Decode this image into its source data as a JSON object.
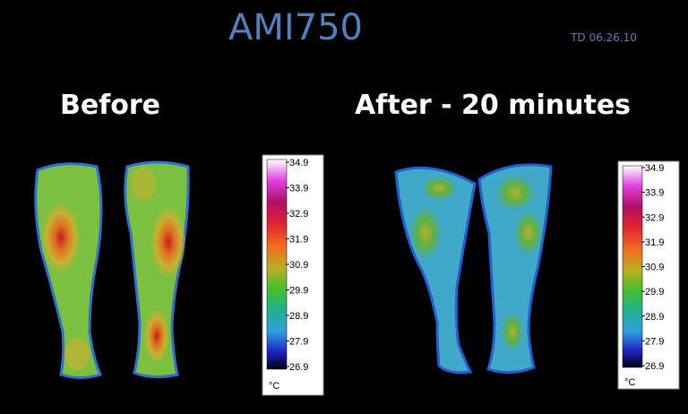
{
  "header": {
    "title": "AMI750",
    "date": "TD 06.26.10"
  },
  "panels": [
    {
      "label": "Before",
      "scale": {
        "ticks": [
          "34.9",
          "33.9",
          "32.9",
          "31.9",
          "30.9",
          "29.9",
          "28.9",
          "27.9",
          "26.9"
        ],
        "unit": "°C"
      }
    },
    {
      "label": "After - 20 minutes",
      "scale": {
        "ticks": [
          "34.9",
          "33.9",
          "32.9",
          "31.9",
          "30.9",
          "29.9",
          "28.9",
          "27.9",
          "26.9"
        ],
        "unit": "°C"
      }
    }
  ]
}
